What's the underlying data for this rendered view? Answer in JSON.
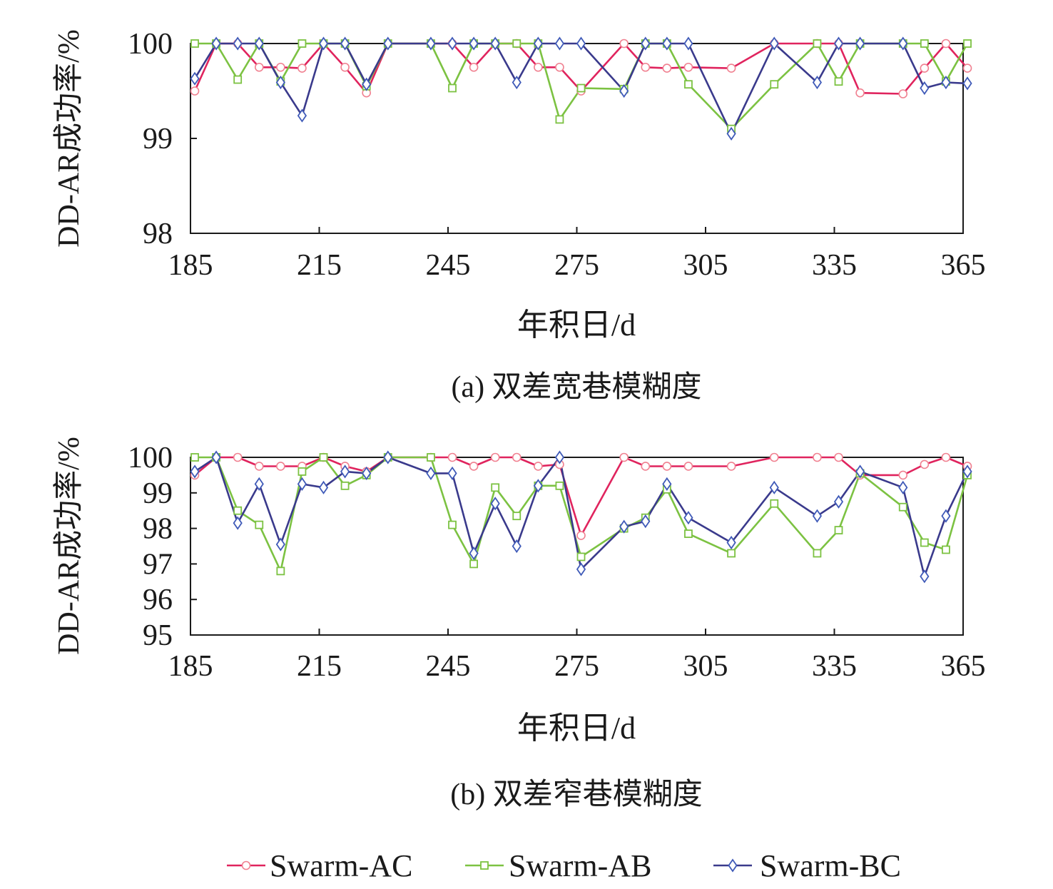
{
  "colors": {
    "axis": "#1a1a1a",
    "Swarm-AC": "#e0245e",
    "Swarm-AB": "#7cc242",
    "Swarm-BC": "#3a3a8c",
    "Swarm-BC-marker": "#3f5ab8"
  },
  "legend": {
    "items": [
      {
        "name": "Swarm-AC",
        "marker": "circle"
      },
      {
        "name": "Swarm-AB",
        "marker": "square"
      },
      {
        "name": "Swarm-BC",
        "marker": "diamond"
      }
    ]
  },
  "chart_data": [
    {
      "type": "line",
      "caption": "(a) 双差宽巷模糊度",
      "ylabel": "DD-AR成功率/%",
      "xlabel": "年积日/d",
      "xlim": [
        185,
        365
      ],
      "ylim": [
        98,
        100
      ],
      "xticks": [
        185,
        215,
        245,
        275,
        305,
        335,
        365
      ],
      "yticks": [
        98,
        99,
        100
      ],
      "grid": false,
      "x": [
        186,
        191,
        196,
        201,
        206,
        211,
        216,
        221,
        226,
        231,
        241,
        246,
        251,
        256,
        261,
        266,
        271,
        276,
        286,
        291,
        296,
        301,
        311,
        321,
        331,
        336,
        341,
        351,
        356,
        361,
        366
      ],
      "series": [
        {
          "name": "Swarm-AC",
          "values": [
            99.5,
            100,
            100,
            99.75,
            99.75,
            99.74,
            100,
            99.75,
            99.48,
            100,
            100,
            100,
            99.75,
            100,
            100,
            99.75,
            99.75,
            99.5,
            100,
            99.75,
            99.74,
            99.75,
            99.74,
            100,
            100,
            100,
            99.48,
            99.47,
            99.74,
            100,
            99.74
          ]
        },
        {
          "name": "Swarm-AB",
          "values": [
            100,
            100,
            99.62,
            100,
            99.6,
            100,
            100,
            100,
            99.55,
            100,
            100,
            99.53,
            100,
            100,
            100,
            100,
            99.2,
            99.53,
            99.52,
            100,
            100,
            99.57,
            99.1,
            99.57,
            100,
            99.6,
            100,
            100,
            100,
            99.6,
            100
          ]
        },
        {
          "name": "Swarm-BC",
          "values": [
            99.63,
            100,
            100,
            100,
            99.59,
            99.24,
            100,
            100,
            99.57,
            100,
            100,
            100,
            100,
            100,
            99.59,
            100,
            100,
            100,
            99.5,
            100,
            100,
            100,
            99.05,
            100,
            99.59,
            100,
            100,
            100,
            99.53,
            99.59,
            99.58
          ]
        }
      ]
    },
    {
      "type": "line",
      "caption": "(b) 双差窄巷模糊度",
      "ylabel": "DD-AR成功率/%",
      "xlabel": "年积日/d",
      "xlim": [
        185,
        365
      ],
      "ylim": [
        95,
        100
      ],
      "xticks": [
        185,
        215,
        245,
        275,
        305,
        335,
        365
      ],
      "yticks": [
        95,
        96,
        97,
        98,
        99,
        100
      ],
      "grid": false,
      "x": [
        186,
        191,
        196,
        201,
        206,
        211,
        216,
        221,
        226,
        231,
        241,
        246,
        251,
        256,
        261,
        266,
        271,
        276,
        286,
        291,
        296,
        301,
        311,
        321,
        331,
        336,
        341,
        351,
        356,
        361,
        366
      ],
      "series": [
        {
          "name": "Swarm-AC",
          "values": [
            99.5,
            100,
            100,
            99.75,
            99.75,
            99.75,
            100,
            99.75,
            99.6,
            100,
            100,
            100,
            99.75,
            100,
            100,
            99.75,
            99.8,
            97.8,
            100,
            99.75,
            99.75,
            99.75,
            99.75,
            100,
            100,
            100,
            99.5,
            99.5,
            99.8,
            100,
            99.75
          ]
        },
        {
          "name": "Swarm-AB",
          "values": [
            100,
            100,
            98.5,
            98.1,
            96.8,
            99.6,
            100,
            99.2,
            99.5,
            100,
            100,
            98.1,
            97,
            99.15,
            98.35,
            99.2,
            99.2,
            97.2,
            98,
            98.3,
            99.1,
            97.85,
            97.3,
            98.7,
            97.3,
            97.95,
            99.55,
            98.6,
            97.6,
            97.4,
            99.5
          ]
        },
        {
          "name": "Swarm-BC",
          "values": [
            99.6,
            100,
            98.15,
            99.25,
            97.55,
            99.25,
            99.15,
            99.6,
            99.55,
            100,
            99.55,
            99.55,
            97.3,
            98.7,
            97.5,
            99.2,
            100,
            96.85,
            98.05,
            98.2,
            99.25,
            98.3,
            97.6,
            99.15,
            98.35,
            98.75,
            99.6,
            99.15,
            96.65,
            98.35,
            99.6
          ]
        }
      ]
    }
  ]
}
